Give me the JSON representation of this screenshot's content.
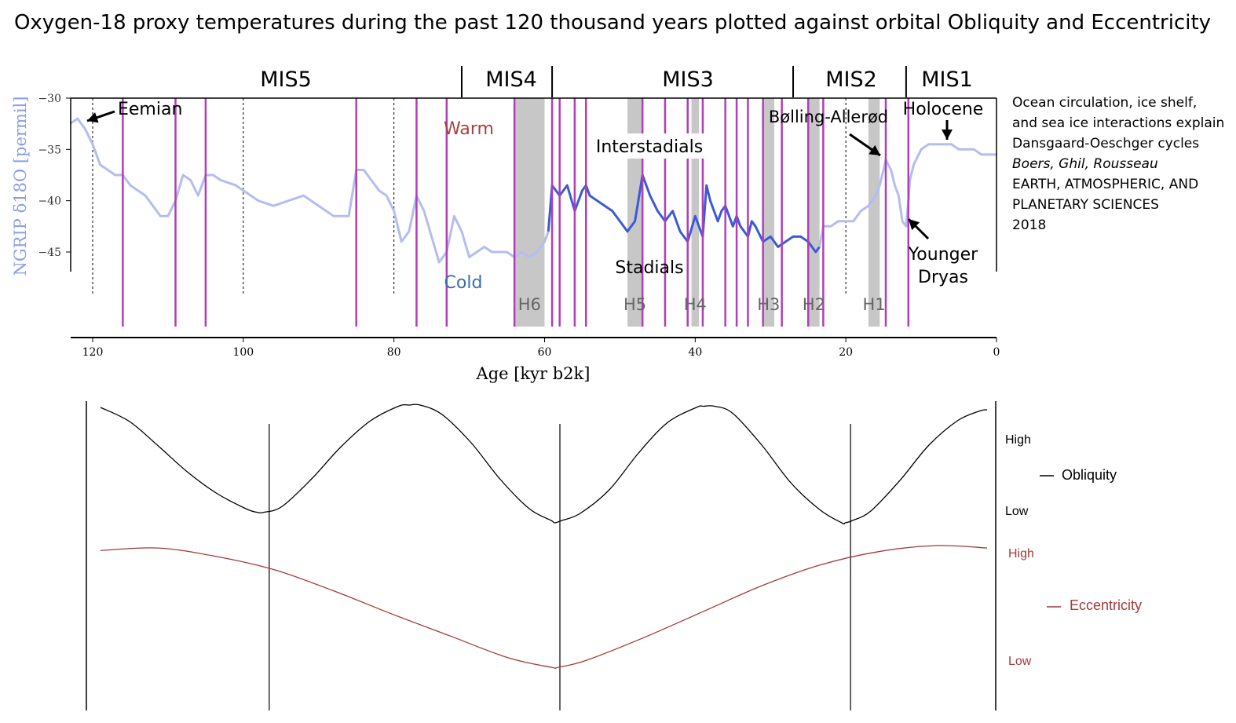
{
  "title": "Oxygen-18 proxy temperatures during the past 120 thousand years plotted against orbital Obliquity and Eccentricity",
  "side_note": {
    "line1": "Ocean circulation, ice shelf,",
    "line2": "and sea ice interactions explain",
    "line3": "Dansgaard-Oeschger cycles",
    "authors": "Boers, Ghil, Rousseau",
    "dept1": "EARTH, ATMOSPHERIC, AND",
    "dept2": "PLANETARY SCIENCES",
    "year": "2018"
  },
  "colors": {
    "record_light": "#b3bdf0",
    "record_dark": "#3d5ad6",
    "event_lines": "#b23db8",
    "heinrich_band": "#c7c7c7",
    "warm_label": "#a84040",
    "cold_label": "#3a6cb0",
    "obliquity": "#000000",
    "eccentricity": "#a33a3a"
  },
  "chart_data": [
    {
      "type": "line",
      "title": "",
      "ylabel": "NGRIP δ18O [permil]",
      "xlabel": "Age [kyr b2k]",
      "xlim": [
        123,
        0
      ],
      "ylim": [
        -30,
        -47
      ],
      "x_ticks": [
        120,
        100,
        80,
        60,
        40,
        20,
        0
      ],
      "y_ticks": [
        -30,
        -35,
        -40,
        -45
      ],
      "stages": [
        {
          "label": "MIS5",
          "from": 123,
          "to": 71
        },
        {
          "label": "MIS4",
          "from": 71,
          "to": 59
        },
        {
          "label": "MIS3",
          "from": 59,
          "to": 27
        },
        {
          "label": "MIS2",
          "from": 27,
          "to": 12
        },
        {
          "label": "MIS1",
          "from": 12,
          "to": 0
        }
      ],
      "stage_boundaries": [
        71,
        59,
        27,
        12
      ],
      "heinrich_events": [
        {
          "label": "H6",
          "from": 64,
          "to": 60
        },
        {
          "label": "H5",
          "from": 49,
          "to": 47
        },
        {
          "label": "H4",
          "from": 40.5,
          "to": 39.5
        },
        {
          "label": "H3",
          "from": 31,
          "to": 29.5
        },
        {
          "label": "H2",
          "from": 25,
          "to": 23.5
        },
        {
          "label": "H1",
          "from": 17,
          "to": 15.5
        }
      ],
      "event_markers_kyr": [
        116,
        109,
        105,
        85,
        77,
        73,
        64,
        59,
        58,
        56,
        54.5,
        47,
        44,
        41,
        39,
        36,
        34.5,
        33,
        31,
        28.5,
        25,
        23,
        14.7,
        11.7
      ],
      "dashed_markers_kyr": [
        120,
        100,
        80,
        20
      ],
      "annotations": [
        "Eemian",
        "Warm",
        "Cold",
        "Interstadials",
        "Stadials",
        "Bølling-Allerød",
        "Holocene",
        "Younger",
        "Dryas"
      ],
      "series": [
        {
          "style": "light",
          "x": [
            123,
            122,
            121,
            120,
            119,
            118,
            117,
            116,
            115,
            113,
            111,
            110,
            109,
            108,
            107,
            106,
            105,
            104,
            103,
            101,
            100,
            98,
            96,
            94,
            92,
            90,
            88,
            86,
            85,
            84,
            83,
            82,
            81,
            80,
            79,
            78,
            77,
            76,
            75,
            74,
            73,
            72,
            71,
            70,
            69,
            68,
            67,
            66,
            65,
            64,
            63,
            62,
            61,
            60,
            59.5
          ],
          "y": [
            -32.5,
            -32,
            -33,
            -34.5,
            -36.5,
            -37,
            -37.5,
            -37.5,
            -38.5,
            -39.5,
            -41.5,
            -41.5,
            -40,
            -37.5,
            -38,
            -39.5,
            -37.5,
            -37.5,
            -38,
            -38.5,
            -39,
            -40,
            -40.5,
            -40,
            -39.5,
            -40.5,
            -41.5,
            -41.5,
            -37,
            -37,
            -38,
            -39,
            -39.5,
            -41,
            -44,
            -43,
            -39.5,
            -41,
            -43.5,
            -46,
            -45,
            -41.5,
            -43,
            -45.5,
            -45,
            -44.5,
            -45,
            -45,
            -45,
            -45.5,
            -45,
            -45.5,
            -45,
            -44,
            -43
          ]
        },
        {
          "style": "dark",
          "x": [
            59.5,
            59,
            58,
            57,
            56,
            55,
            54.5,
            54,
            53,
            52,
            51,
            50,
            49,
            48,
            47,
            46,
            45,
            44,
            43,
            42,
            41,
            40,
            39,
            38.5,
            38,
            37,
            36.5,
            36,
            35,
            34.5,
            34,
            33,
            32.5,
            32,
            31,
            30,
            29,
            28,
            27,
            26,
            25,
            24,
            23.5
          ],
          "y": [
            -43,
            -38.5,
            -39.5,
            -38.5,
            -41,
            -39,
            -38.5,
            -39.5,
            -40,
            -40.5,
            -41,
            -42,
            -43,
            -42,
            -37.5,
            -39.5,
            -41,
            -42,
            -41,
            -43,
            -44,
            -41.5,
            -43.5,
            -38.5,
            -40,
            -42,
            -41,
            -40.5,
            -42.5,
            -41.5,
            -42.5,
            -43.5,
            -42,
            -42.5,
            -44,
            -43.5,
            -44.5,
            -44,
            -43.5,
            -43.5,
            -44,
            -45,
            -44.5
          ]
        },
        {
          "style": "light",
          "x": [
            23.5,
            23,
            22,
            21,
            20,
            19,
            18,
            17,
            16,
            15.5,
            15,
            14.7,
            14,
            13.5,
            13,
            12.5,
            12,
            11.7,
            11.5,
            11,
            10,
            9,
            8,
            7,
            6,
            5,
            4,
            3,
            2,
            1,
            0
          ],
          "y": [
            -44.5,
            -42.5,
            -42.5,
            -42,
            -42,
            -42,
            -41,
            -40.5,
            -39.5,
            -38.5,
            -37,
            -36,
            -37,
            -38.5,
            -39.5,
            -42,
            -42.5,
            -40,
            -38,
            -36.5,
            -35,
            -34.5,
            -34.5,
            -34.5,
            -34.5,
            -35,
            -35,
            -35,
            -35.5,
            -35.5,
            -35.5
          ]
        }
      ]
    },
    {
      "type": "line",
      "xlim": [
        123,
        0
      ],
      "divider_kyr": [
        100,
        60,
        20
      ],
      "series": [
        {
          "name": "Obliquity",
          "high_label": "High",
          "low_label": "Low",
          "x": [
            123,
            119,
            115,
            111,
            107,
            103,
            101.5,
            100.5,
            98,
            94,
            90,
            86,
            82,
            80.5,
            79,
            76,
            72,
            68,
            64,
            61,
            60.5,
            59.5,
            57,
            53,
            49,
            45,
            41,
            40,
            38.5,
            36,
            32,
            28,
            24,
            21,
            20.5,
            19.5,
            17,
            13,
            9,
            5,
            2,
            1
          ],
          "y": [
            0.98,
            0.86,
            0.65,
            0.43,
            0.25,
            0.12,
            0.09,
            0.09,
            0.14,
            0.37,
            0.64,
            0.86,
            0.99,
            1.0,
            1.0,
            0.92,
            0.68,
            0.37,
            0.12,
            0.02,
            0.0,
            0.02,
            0.08,
            0.28,
            0.59,
            0.85,
            0.98,
            0.99,
            0.99,
            0.93,
            0.66,
            0.34,
            0.11,
            0.0,
            0.0,
            0.02,
            0.1,
            0.36,
            0.66,
            0.87,
            0.95,
            0.96
          ]
        },
        {
          "name": "Eccentricity",
          "high_label": "High",
          "low_label": "Low",
          "x": [
            123,
            115,
            107,
            99,
            91,
            83,
            75,
            67,
            61,
            60,
            56,
            48,
            40,
            32,
            24,
            16,
            8,
            1
          ],
          "y": [
            0.96,
            0.98,
            0.91,
            0.8,
            0.63,
            0.44,
            0.26,
            0.08,
            0.0,
            0.0,
            0.06,
            0.25,
            0.46,
            0.67,
            0.84,
            0.95,
            1.0,
            0.98
          ]
        }
      ]
    }
  ]
}
